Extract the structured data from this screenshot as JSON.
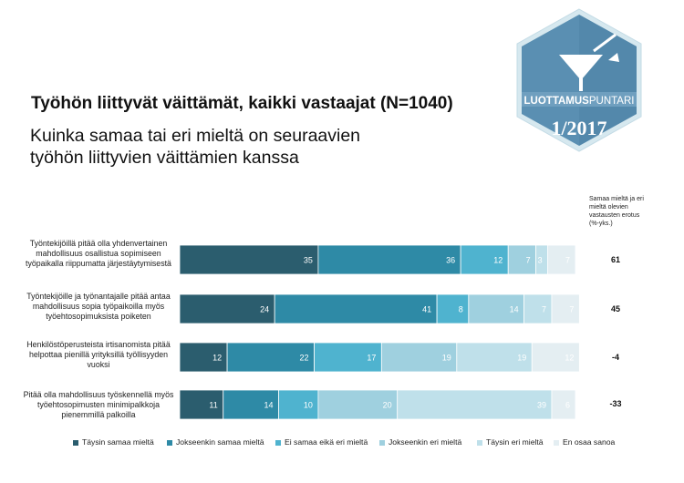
{
  "title": "Työhön liittyvät väittämät, kaikki vastaajat (N=1040)",
  "subtitle": "Kuinka samaa tai eri mieltä on seuraavien työhön liittyvien väittämien kanssa",
  "badge": {
    "brand_bold": "LUOTTAMUS",
    "brand_light": "PUNTARI",
    "issue": "1/2017"
  },
  "diff_header": "Samaa mieltä ja eri mieltä olevien vastausten erotus (%-yks.)",
  "colors": {
    "palette": [
      "#2b5d6e",
      "#2e8aa6",
      "#4fb3cf",
      "#9fd0df",
      "#bfe0ea",
      "#e4eef2"
    ],
    "label_light": "#ffffff",
    "label_dark": "#ffffff"
  },
  "chart_data": {
    "type": "bar",
    "orientation": "horizontal",
    "stacked": true,
    "categories": [
      "Työntekijöillä pitää olla yhdenvertainen mahdollisuus osallistua sopimiseen työpaikalla riippumatta järjestäytymisestä",
      "Työntekijöille ja työnantajalle pitää antaa mahdollisuus sopia työpaikoilla myös työehtosopimuksista poiketen",
      "Henkilöstöperusteista irtisanomista pitää helpottaa pienillä yrityksillä työllisyyden vuoksi",
      "Pitää olla mahdollisuus työskennellä myös työehtosopimusten minimipalkkoja pienemmillä palkoilla"
    ],
    "series": [
      {
        "name": "Täysin samaa mieltä",
        "values": [
          35,
          24,
          12,
          11
        ]
      },
      {
        "name": "Jokseenkin samaa mieltä",
        "values": [
          36,
          41,
          22,
          14
        ]
      },
      {
        "name": "Ei samaa eikä eri mieltä",
        "values": [
          12,
          8,
          17,
          10
        ]
      },
      {
        "name": "Jokseenkin eri mieltä",
        "values": [
          7,
          14,
          19,
          20
        ]
      },
      {
        "name": "Täysin eri mieltä",
        "values": [
          3,
          7,
          19,
          39
        ]
      },
      {
        "name": "En osaa sanoa",
        "values": [
          7,
          7,
          12,
          6
        ]
      }
    ],
    "differences": [
      61,
      45,
      -4,
      -33
    ],
    "xlim": [
      0,
      100
    ],
    "legend_position": "bottom"
  }
}
